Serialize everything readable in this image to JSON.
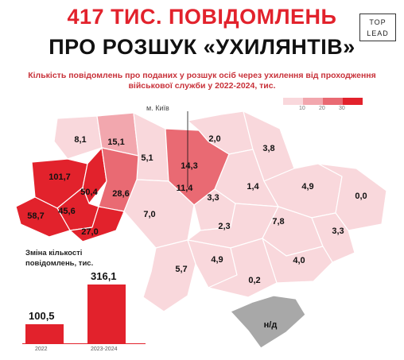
{
  "header": {
    "title_line1": "417 ТИС. ПОВІДОМЛЕНЬ",
    "title_line2": "ПРО РОЗШУК «УХИЛЯНТІВ»",
    "logo_line1": "TOP",
    "logo_line2": "LEAD",
    "subtitle_line1": "Кількість повідомлень про поданих у розшук осіб через ухилення від проходження",
    "subtitle_line2": "військової служби у 2022-2024, тис."
  },
  "legend": {
    "labels": [
      "10",
      "20",
      "30"
    ],
    "colors": [
      "#f9d8dc",
      "#f2a7ae",
      "#e96a73",
      "#e2222c"
    ]
  },
  "map": {
    "kyiv_label": "м. Київ",
    "crimea_label": "н/д",
    "regions": [
      {
        "id": "volyn",
        "value": "8,1"
      },
      {
        "id": "rivne",
        "value": "15,1"
      },
      {
        "id": "zhytomyr",
        "value": "5,1"
      },
      {
        "id": "kyiv-oblast",
        "value": "14,3"
      },
      {
        "id": "kyiv-city",
        "value": "11,4"
      },
      {
        "id": "chernihiv",
        "value": "2,0"
      },
      {
        "id": "sumy",
        "value": "3,8"
      },
      {
        "id": "lviv",
        "value": "101,7"
      },
      {
        "id": "ternopil",
        "value": "50,4"
      },
      {
        "id": "khmelnytskyi",
        "value": "28,6"
      },
      {
        "id": "ivano-frankivsk",
        "value": "45,6"
      },
      {
        "id": "zakarpattia",
        "value": "58,7"
      },
      {
        "id": "chernivtsi",
        "value": "27,0"
      },
      {
        "id": "vinnytsia",
        "value": "7,0"
      },
      {
        "id": "cherkasy",
        "value": "3,3"
      },
      {
        "id": "poltava",
        "value": "1,4"
      },
      {
        "id": "kharkiv",
        "value": "4,9"
      },
      {
        "id": "luhansk",
        "value": "0,0"
      },
      {
        "id": "kirovohrad",
        "value": "2,3"
      },
      {
        "id": "dnipropetrovsk",
        "value": "7,8"
      },
      {
        "id": "donetsk",
        "value": "3,3"
      },
      {
        "id": "odesa",
        "value": "5,7"
      },
      {
        "id": "mykolaiv",
        "value": "4,9"
      },
      {
        "id": "zaporizhzhia",
        "value": "4,0"
      },
      {
        "id": "kherson",
        "value": "0,2"
      }
    ],
    "colors": {
      "light": "#f9d8dc",
      "mid": "#f2a7ae",
      "strong": "#e96a73",
      "max": "#e2222c",
      "crimea": "#a8a8a8"
    }
  },
  "chart_data": {
    "type": "bar",
    "title": "Зміна кількості повідомлень, тис.",
    "categories": [
      "2022",
      "2023-2024"
    ],
    "values": [
      100.5,
      316.1
    ],
    "value_labels": [
      "100,5",
      "316,1"
    ],
    "ylim": [
      0,
      316.1
    ]
  }
}
